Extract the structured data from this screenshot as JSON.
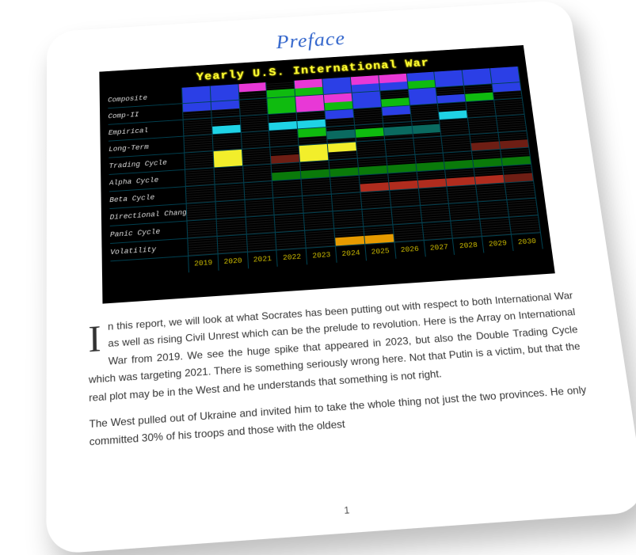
{
  "title": "Preface",
  "chart": {
    "title": "Yearly U.S. International War",
    "rows": [
      "Composite",
      "Comp-II",
      "Empirical",
      "Long-Term",
      "Trading Cycle",
      "Alpha Cycle",
      "Beta Cycle",
      "Directional Change",
      "Panic Cycle",
      "Volatility"
    ],
    "years": [
      "2019",
      "2020",
      "2021",
      "2022",
      "2023",
      "2024",
      "2025",
      "2026",
      "2027",
      "2028",
      "2029",
      "2030"
    ],
    "colors": {
      "blue": "#2b3fe6",
      "magenta": "#e838d6",
      "green": "#0fbb0f",
      "darkgreen": "#0a7a0a",
      "cyan": "#1fd3e6",
      "yellow": "#f2ee2b",
      "orange": "#e69a00",
      "red": "#b02c1e",
      "darkred": "#6e1e14",
      "teal": "#0a6a60"
    },
    "cells": [
      [
        [
          "blue",
          "full"
        ],
        [
          "blue",
          "full"
        ],
        [
          "magenta",
          "top"
        ],
        [
          "green",
          "bottom"
        ],
        [
          "magenta",
          "top",
          "green",
          "bottom"
        ],
        [
          "blue",
          "full"
        ],
        [
          "magenta",
          "top",
          "blue",
          "bottom"
        ],
        [
          "magenta",
          "top",
          "blue",
          "bottom"
        ],
        [
          "blue",
          "top",
          "green",
          "bottom"
        ],
        [
          "blue",
          "full"
        ],
        [
          "blue",
          "full"
        ],
        [
          "blue",
          "full"
        ]
      ],
      [
        [
          "blue",
          "top"
        ],
        [
          "blue",
          "top"
        ],
        [],
        [
          "green",
          "full"
        ],
        [
          "magenta",
          "full"
        ],
        [
          "magenta",
          "top",
          "green",
          "bottom"
        ],
        [
          "blue",
          "full"
        ],
        [
          "green",
          "bottom"
        ],
        [
          "blue",
          "full"
        ],
        [
          "blue",
          "bottom"
        ],
        [
          "green",
          "bottom"
        ],
        [
          "blue",
          "top"
        ]
      ],
      [
        [],
        [
          "cyan",
          "bottom"
        ],
        [],
        [
          "cyan",
          "bottom"
        ],
        [
          "cyan",
          "bottom"
        ],
        [
          "blue",
          "top"
        ],
        [],
        [
          "blue",
          "top"
        ],
        [],
        [
          "cyan",
          "bottom"
        ],
        [],
        []
      ],
      [
        [],
        [],
        [],
        [],
        [
          "green",
          "top"
        ],
        [
          "teal",
          "mid"
        ],
        [
          "green",
          "mid"
        ],
        [
          "teal",
          "mid"
        ],
        [
          "teal",
          "mid"
        ],
        [],
        [],
        []
      ],
      [
        [],
        [
          "yellow",
          "full"
        ],
        [],
        [
          "darkred",
          "bottom"
        ],
        [
          "yellow",
          "full"
        ],
        [
          "yellow",
          "top"
        ],
        [],
        [],
        [],
        [],
        [
          "darkred",
          "bottom"
        ],
        [
          "darkred",
          "bottom"
        ]
      ],
      [
        [],
        [],
        [],
        [
          "darkgreen",
          "bottom"
        ],
        [
          "darkgreen",
          "bottom"
        ],
        [
          "darkgreen",
          "bottom"
        ],
        [
          "darkgreen",
          "bottom"
        ],
        [
          "darkgreen",
          "bottom"
        ],
        [
          "darkgreen",
          "bottom"
        ],
        [
          "darkgreen",
          "bottom"
        ],
        [
          "darkgreen",
          "bottom"
        ],
        [
          "darkgreen",
          "bottom"
        ]
      ],
      [
        [],
        [],
        [],
        [],
        [],
        [],
        [
          "red",
          "bottom"
        ],
        [
          "red",
          "bottom"
        ],
        [
          "red",
          "bottom"
        ],
        [
          "red",
          "bottom"
        ],
        [
          "red",
          "bottom"
        ],
        [
          "darkred",
          "bottom"
        ]
      ],
      [
        [],
        [],
        [],
        [],
        [],
        [],
        [],
        [],
        [],
        [],
        [],
        []
      ],
      [
        [],
        [],
        [],
        [],
        [],
        [],
        [],
        [],
        [],
        [],
        [],
        []
      ],
      [
        [],
        [],
        [],
        [],
        [],
        [
          "orange",
          "bottom"
        ],
        [
          "orange",
          "bottom"
        ],
        [],
        [],
        [],
        [],
        []
      ]
    ]
  },
  "drop_cap": "I",
  "para1": "n this report, we will look at what Socrates has been putting out with respect to both International War as well as rising Civil Unrest which can be the prelude to revolution. Here is the Array on International War from 2019. We see the huge spike that appeared in 2023, but also the Double Trading Cycle which was targeting 2021. There is something seriously wrong here. Not that Putin is a victim, but that the real plot may be in the West and he understands that something is not right.",
  "para2": "The West pulled out of Ukraine and invited him to take the whole thing not just the two provinces. He only committed 30% of his troops and those with the oldest",
  "page_number": "1"
}
